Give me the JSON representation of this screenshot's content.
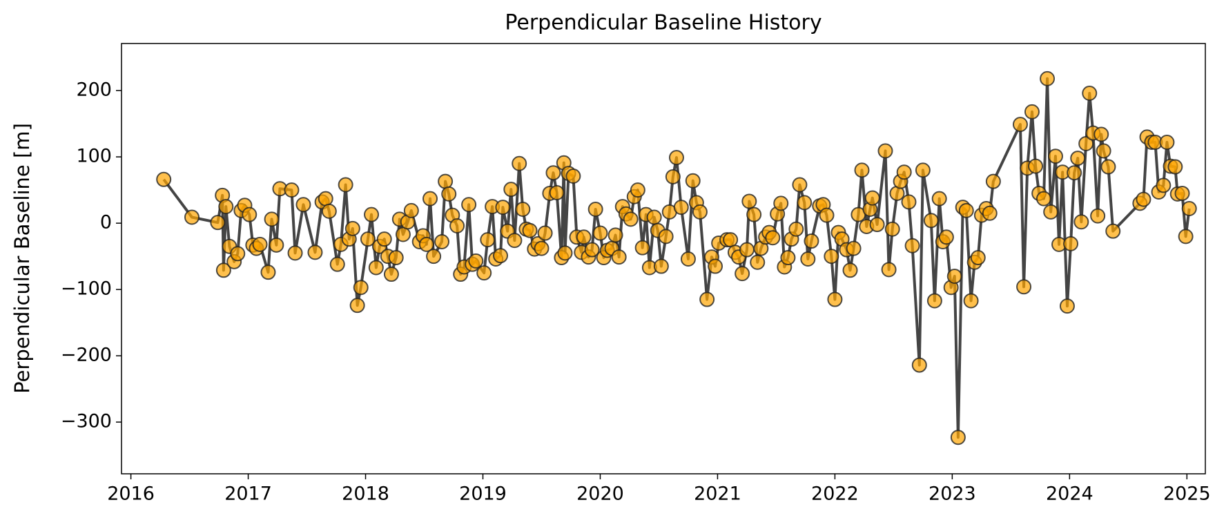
{
  "chart_data": {
    "type": "line",
    "title": "Perpendicular Baseline History",
    "y_label": "Perpendicular Baseline [m]",
    "xlim": [
      2015.92,
      2025.157
    ],
    "ylim": [
      -378,
      271
    ],
    "xticks": [
      2016,
      2017,
      2018,
      2019,
      2020,
      2021,
      2022,
      2023,
      2024,
      2025
    ],
    "yticks": [
      {
        "value": -300,
        "label": "−300"
      },
      {
        "value": -200,
        "label": "−200"
      },
      {
        "value": -100,
        "label": "−100"
      },
      0,
      100,
      200
    ],
    "line_color": "#444444",
    "marker_color": "#ffa500",
    "marker_edge_color": "#222222",
    "x": [
      2016.28,
      2016.52,
      2016.74,
      2016.78,
      2016.79,
      2016.81,
      2016.84,
      2016.88,
      2016.91,
      2016.94,
      2016.97,
      2017.01,
      2017.04,
      2017.07,
      2017.1,
      2017.17,
      2017.2,
      2017.24,
      2017.27,
      2017.37,
      2017.4,
      2017.47,
      2017.57,
      2017.63,
      2017.66,
      2017.69,
      2017.76,
      2017.79,
      2017.83,
      2017.86,
      2017.89,
      2017.93,
      2017.96,
      2018.02,
      2018.05,
      2018.09,
      2018.12,
      2018.16,
      2018.19,
      2018.22,
      2018.26,
      2018.29,
      2018.32,
      2018.36,
      2018.39,
      2018.46,
      2018.49,
      2018.52,
      2018.55,
      2018.58,
      2018.65,
      2018.68,
      2018.71,
      2018.74,
      2018.78,
      2018.81,
      2018.84,
      2018.88,
      2018.91,
      2018.94,
      2019.01,
      2019.04,
      2019.08,
      2019.11,
      2019.15,
      2019.17,
      2019.21,
      2019.24,
      2019.27,
      2019.31,
      2019.34,
      2019.37,
      2019.4,
      2019.44,
      2019.47,
      2019.5,
      2019.53,
      2019.57,
      2019.6,
      2019.63,
      2019.67,
      2019.69,
      2019.7,
      2019.73,
      2019.77,
      2019.8,
      2019.84,
      2019.86,
      2019.9,
      2019.93,
      2019.96,
      2020.0,
      2020.03,
      2020.06,
      2020.1,
      2020.13,
      2020.16,
      2020.19,
      2020.22,
      2020.26,
      2020.29,
      2020.32,
      2020.36,
      2020.39,
      2020.42,
      2020.46,
      2020.49,
      2020.52,
      2020.56,
      2020.59,
      2020.62,
      2020.65,
      2020.69,
      2020.75,
      2020.79,
      2020.82,
      2020.85,
      2020.91,
      2020.95,
      2020.98,
      2021.01,
      2021.08,
      2021.11,
      2021.15,
      2021.18,
      2021.21,
      2021.25,
      2021.27,
      2021.31,
      2021.34,
      2021.37,
      2021.41,
      2021.44,
      2021.47,
      2021.51,
      2021.54,
      2021.57,
      2021.6,
      2021.63,
      2021.67,
      2021.7,
      2021.74,
      2021.77,
      2021.8,
      2021.87,
      2021.9,
      2021.93,
      2021.97,
      2022.0,
      2022.03,
      2022.06,
      2022.1,
      2022.13,
      2022.16,
      2022.2,
      2022.23,
      2022.27,
      2022.3,
      2022.32,
      2022.36,
      2022.43,
      2022.46,
      2022.49,
      2022.53,
      2022.56,
      2022.59,
      2022.63,
      2022.66,
      2022.72,
      2022.75,
      2022.82,
      2022.85,
      2022.89,
      2022.92,
      2022.95,
      2022.99,
      2023.02,
      2023.05,
      2023.09,
      2023.12,
      2023.16,
      2023.19,
      2023.22,
      2023.25,
      2023.29,
      2023.32,
      2023.35,
      2023.58,
      2023.61,
      2023.64,
      2023.68,
      2023.71,
      2023.74,
      2023.78,
      2023.81,
      2023.84,
      2023.88,
      2023.91,
      2023.94,
      2023.98,
      2024.01,
      2024.04,
      2024.07,
      2024.1,
      2024.14,
      2024.17,
      2024.2,
      2024.24,
      2024.27,
      2024.29,
      2024.33,
      2024.37,
      2024.6,
      2024.63,
      2024.66,
      2024.7,
      2024.73,
      2024.76,
      2024.8,
      2024.83,
      2024.86,
      2024.9,
      2024.92,
      2024.96,
      2024.99,
      2025.02
    ],
    "values": [
      66,
      9,
      1,
      42,
      -71,
      25,
      -35,
      -58,
      -46,
      19,
      27,
      13,
      -33,
      -38,
      -32,
      -74,
      6,
      -33,
      52,
      50,
      -45,
      28,
      -44,
      32,
      37,
      18,
      -62,
      -32,
      58,
      -24,
      -8,
      -124,
      -97,
      -24,
      13,
      -67,
      -35,
      -24,
      -50,
      -77,
      -52,
      6,
      -17,
      2,
      19,
      -28,
      -19,
      -32,
      37,
      -50,
      -28,
      63,
      44,
      12,
      -4,
      -77,
      -66,
      28,
      -62,
      -57,
      -75,
      -25,
      25,
      -54,
      -49,
      24,
      -12,
      51,
      -26,
      90,
      21,
      -9,
      -11,
      -39,
      -31,
      -38,
      -15,
      45,
      76,
      46,
      -52,
      91,
      -45,
      75,
      71,
      -21,
      -44,
      -21,
      -51,
      -40,
      21,
      -15,
      -52,
      -41,
      -38,
      -18,
      -51,
      25,
      14,
      6,
      40,
      50,
      -37,
      13,
      -67,
      9,
      -11,
      -65,
      -20,
      17,
      70,
      99,
      24,
      -54,
      64,
      31,
      17,
      -115,
      -51,
      -65,
      -30,
      -25,
      -25,
      -44,
      -51,
      -76,
      -40,
      33,
      13,
      -59,
      -38,
      -21,
      -14,
      -22,
      14,
      30,
      -66,
      -52,
      -24,
      -9,
      58,
      31,
      -54,
      -27,
      26,
      28,
      12,
      -50,
      -115,
      -14,
      -24,
      -40,
      -71,
      -38,
      13,
      80,
      -5,
      21,
      38,
      -2,
      109,
      -70,
      -9,
      45,
      63,
      77,
      32,
      -34,
      -214,
      80,
      4,
      -117,
      37,
      -28,
      -21,
      -97,
      -80,
      -323,
      24,
      19,
      -117,
      -59,
      -52,
      12,
      22,
      15,
      63,
      149,
      -96,
      83,
      168,
      86,
      45,
      37,
      218,
      17,
      101,
      -32,
      77,
      -125,
      -31,
      76,
      98,
      2,
      120,
      196,
      136,
      11,
      134,
      109,
      85,
      -12,
      30,
      36,
      130,
      122,
      122,
      47,
      57,
      122,
      86,
      85,
      44,
      45,
      -20,
      22
    ]
  }
}
